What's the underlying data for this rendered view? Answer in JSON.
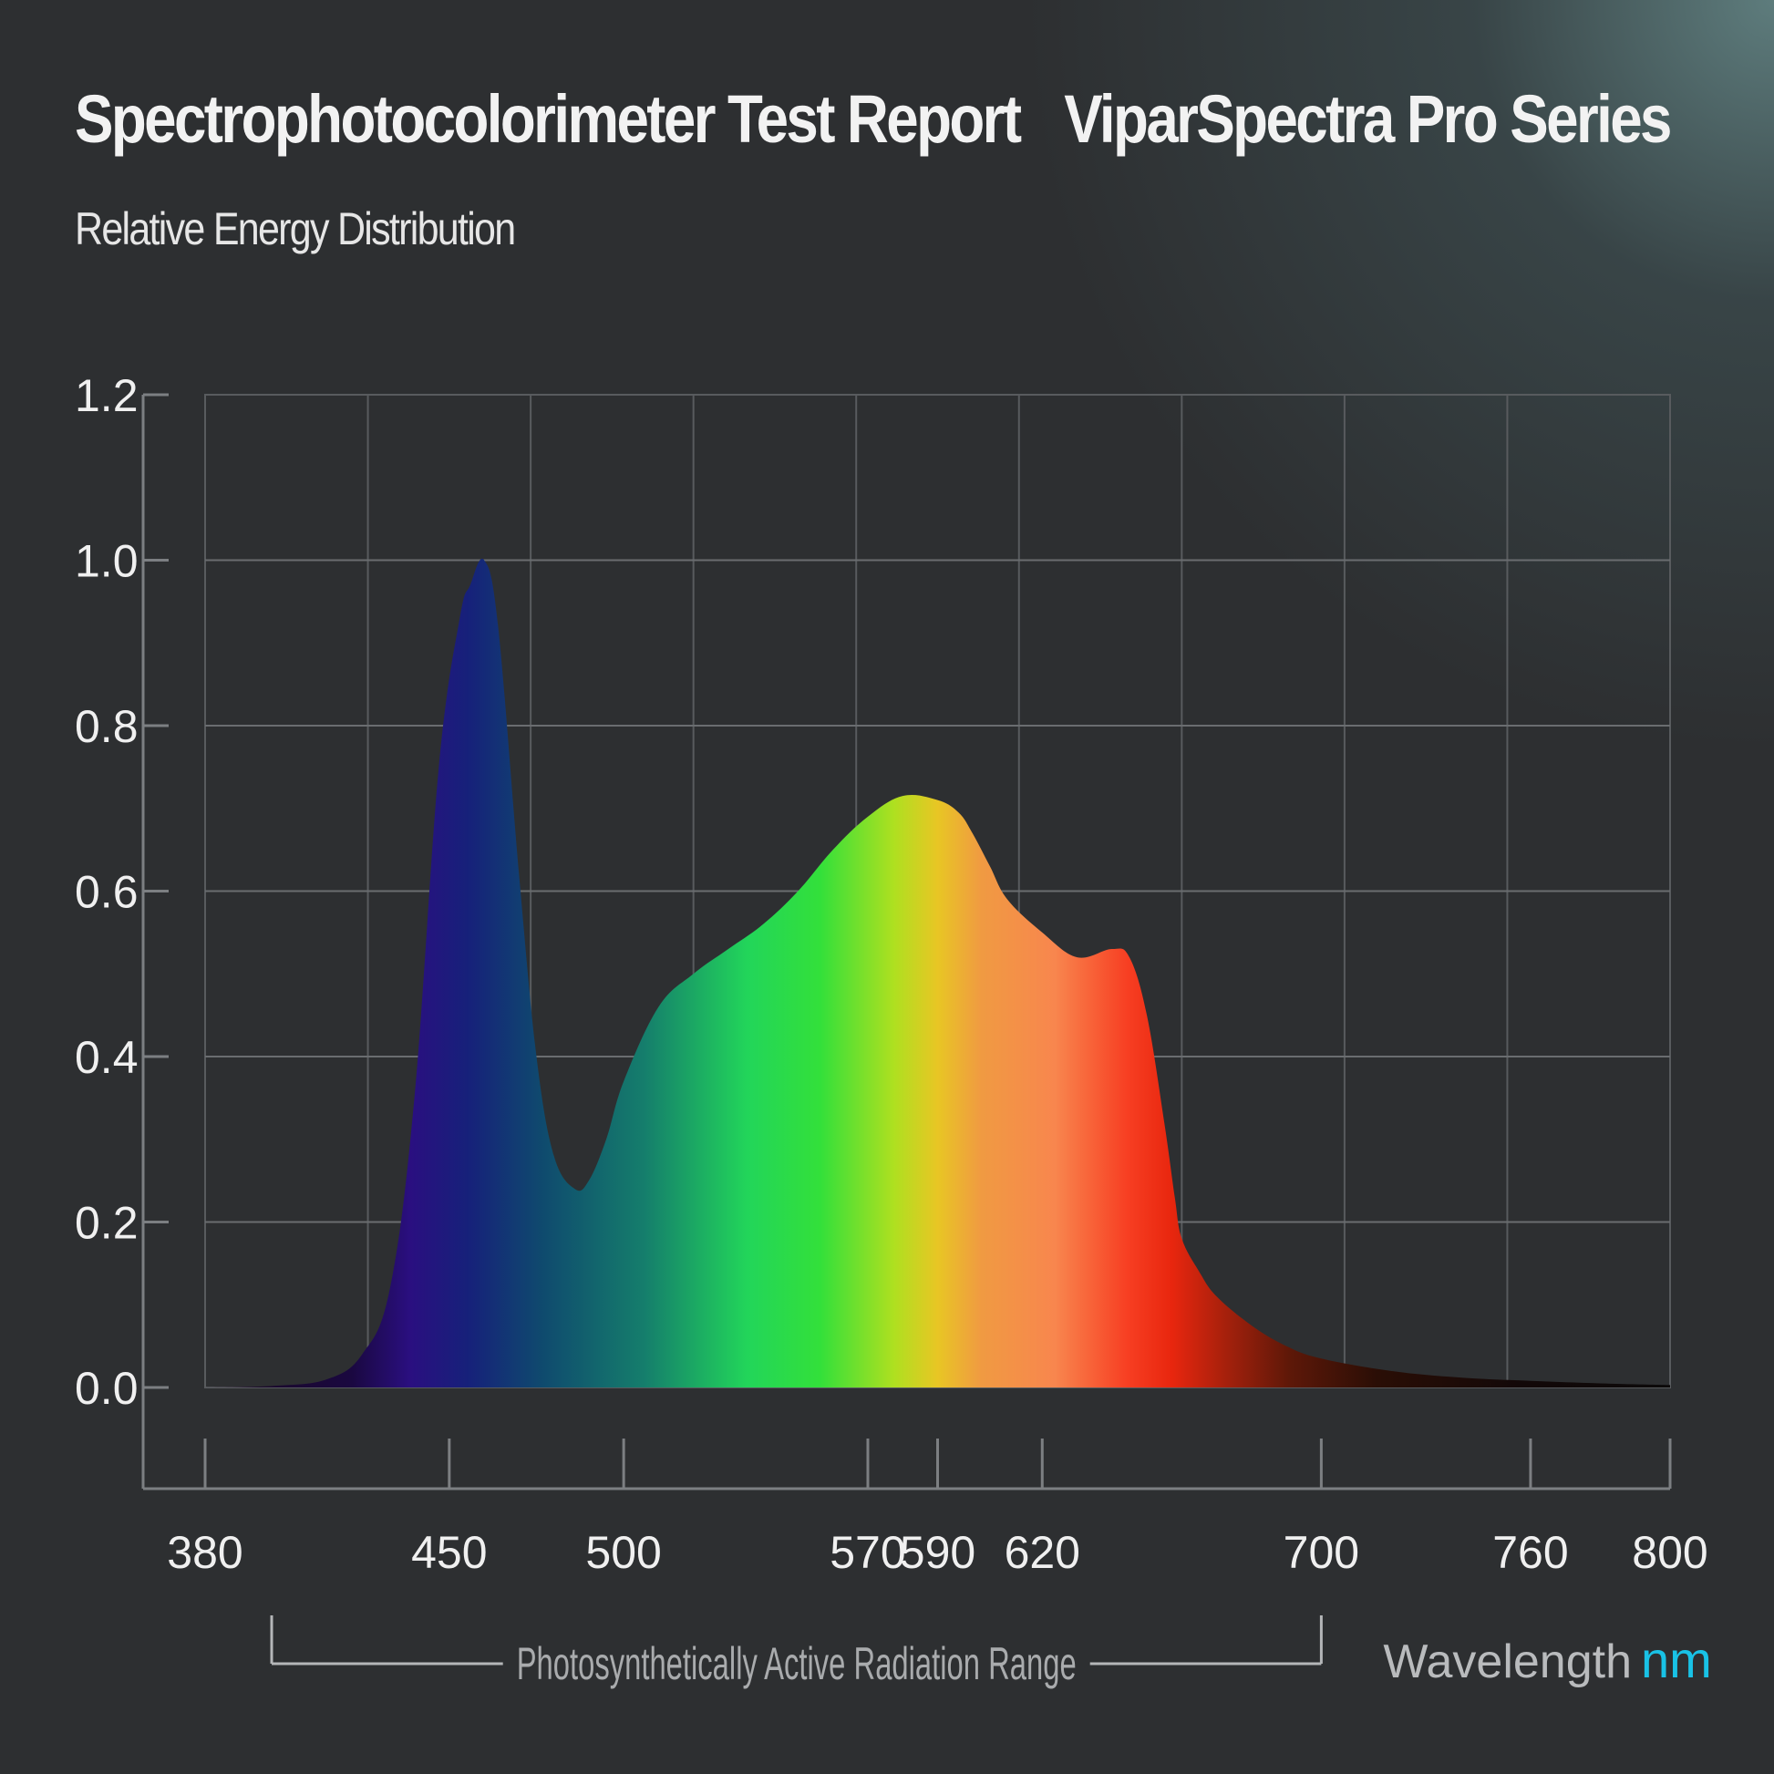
{
  "header": {
    "title": "Spectrophotocolorimeter Test Report",
    "brand": "ViparSpectra Pro Series",
    "subtitle": "Relative Energy Distribution"
  },
  "chart_data": {
    "type": "area",
    "title": "Spectrophotocolorimeter Test Report",
    "subtitle": "Relative Energy Distribution",
    "xlabel": "Wavelength",
    "xunit": "nm",
    "ylabel": "",
    "xlim": [
      380,
      800
    ],
    "ylim": [
      0.0,
      1.2
    ],
    "grid": true,
    "x_ticks": [
      380,
      450,
      500,
      570,
      590,
      620,
      700,
      760,
      800
    ],
    "y_ticks": [
      "0.0",
      "0.2",
      "0.4",
      "0.6",
      "0.8",
      "1.0",
      "1.2"
    ],
    "series": [
      {
        "x": [
          380,
          400,
          415,
          425,
          433,
          440,
          447,
          453,
          456,
          460,
          464,
          470,
          475,
          480,
          486,
          490,
          495,
          500,
          510,
          520,
          530,
          540,
          550,
          560,
          570,
          580,
          590,
          596,
          600,
          605,
          610,
          620,
          630,
          640,
          645,
          650,
          655,
          658,
          660,
          665,
          670,
          680,
          690,
          700,
          720,
          740,
          760,
          780,
          800
        ],
        "values": [
          0.0,
          0.002,
          0.01,
          0.04,
          0.12,
          0.35,
          0.75,
          0.93,
          0.97,
          1.0,
          0.92,
          0.62,
          0.4,
          0.28,
          0.24,
          0.25,
          0.3,
          0.37,
          0.46,
          0.5,
          0.53,
          0.56,
          0.6,
          0.65,
          0.69,
          0.715,
          0.71,
          0.695,
          0.67,
          0.63,
          0.59,
          0.55,
          0.52,
          0.53,
          0.52,
          0.45,
          0.32,
          0.23,
          0.18,
          0.14,
          0.11,
          0.075,
          0.05,
          0.035,
          0.02,
          0.012,
          0.008,
          0.005,
          0.003
        ]
      }
    ],
    "annotations": [
      {
        "text": "Photosynthetically Active Radiation Range",
        "x_range": [
          400,
          700
        ]
      }
    ]
  }
}
